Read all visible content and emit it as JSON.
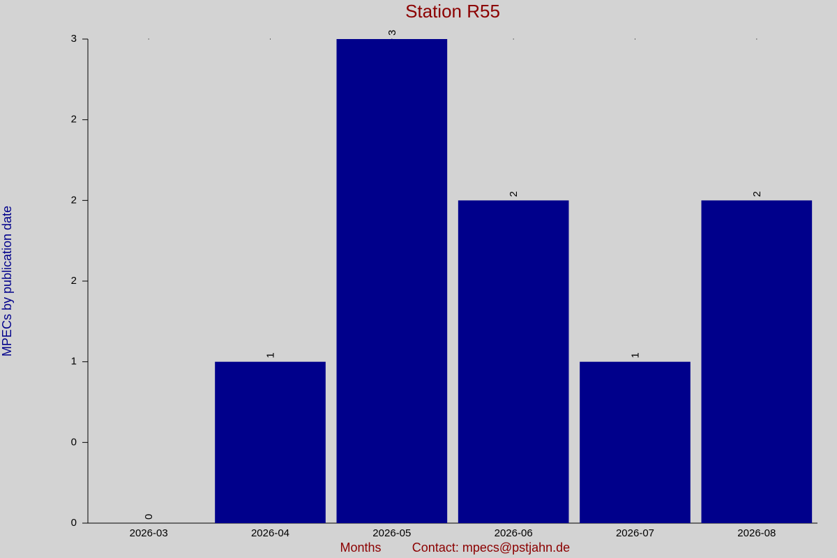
{
  "chart_data": {
    "type": "bar",
    "title": "Station R55",
    "y_label": "MPECs by publication date",
    "x_label": "Months",
    "contact": "Contact: mpecs@pstjahn.de",
    "categories": [
      "2026-03",
      "2026-04",
      "2026-05",
      "2026-06",
      "2026-07",
      "2026-08"
    ],
    "values": [
      0,
      1,
      3,
      2,
      1,
      2
    ],
    "color": "#00008b",
    "ylim": [
      0,
      3
    ],
    "yticks": [
      0,
      {
        "value": 0.5,
        "label": "0"
      },
      1,
      {
        "value": 1.5,
        "label": "2"
      },
      2,
      {
        "value": 2.5,
        "label": "2"
      },
      3
    ],
    "grid": false
  }
}
